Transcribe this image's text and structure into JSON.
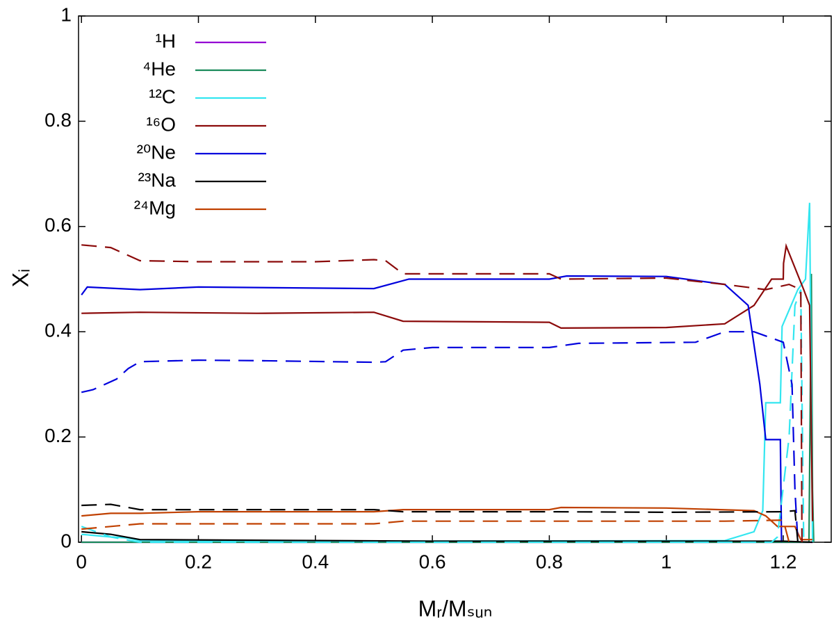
{
  "chart_data": {
    "type": "line",
    "xlabel": "Mᵣ/Mₛᵤₙ",
    "ylabel": "Xᵢ",
    "xlim": [
      -0.005,
      1.282
    ],
    "ylim": [
      0,
      1
    ],
    "xticks": [
      0,
      0.2,
      0.4,
      0.6,
      0.8,
      1,
      1.2
    ],
    "yticks": [
      0,
      0.2,
      0.4,
      0.6,
      0.8,
      1
    ],
    "legend": "top-left",
    "series": [
      {
        "name": "¹H",
        "color": "#9400d3",
        "x": [
          0,
          1.25
        ],
        "values": [
          0,
          0
        ]
      },
      {
        "name": "⁴He",
        "color": "#1a8a5a",
        "x": [
          0,
          1.244,
          1.248,
          1.25,
          1.252
        ],
        "values": [
          0,
          0,
          0.51,
          0.1,
          0
        ]
      },
      {
        "name": "¹²C",
        "color": "#33e6f0",
        "x": [
          0,
          0.05,
          0.08,
          0.1,
          0.5,
          1.1,
          1.15,
          1.165,
          1.17,
          1.195,
          1.198,
          1.225,
          1.238,
          1.245,
          1.25
        ],
        "values": [
          0.015,
          0.01,
          0.008,
          0.003,
          0.002,
          0.003,
          0.02,
          0.06,
          0.265,
          0.265,
          0.41,
          0.48,
          0.5,
          0.645,
          0
        ]
      },
      {
        "name": "¹⁶O",
        "color": "#8b0a0a",
        "x": [
          0,
          0.1,
          0.3,
          0.5,
          0.55,
          0.8,
          0.82,
          1.0,
          1.1,
          1.15,
          1.18,
          1.2,
          1.2005,
          1.205,
          1.235,
          1.245,
          1.25
        ],
        "values": [
          0.435,
          0.437,
          0.435,
          0.437,
          0.42,
          0.418,
          0.407,
          0.408,
          0.415,
          0.45,
          0.5,
          0.5,
          0.53,
          0.563,
          0.48,
          0.45,
          0.04
        ]
      },
      {
        "name": "²⁰Ne",
        "color": "#0000dd",
        "x": [
          0,
          0.01,
          0.1,
          0.2,
          0.5,
          0.56,
          0.8,
          0.83,
          1.0,
          1.1,
          1.14,
          1.16,
          1.17,
          1.195,
          1.197
        ],
        "values": [
          0.47,
          0.485,
          0.48,
          0.485,
          0.482,
          0.5,
          0.5,
          0.506,
          0.505,
          0.49,
          0.45,
          0.3,
          0.195,
          0.195,
          0
        ]
      },
      {
        "name": "²³Na",
        "color": "#000000",
        "x": [
          0,
          0.05,
          0.1,
          0.6,
          1.2,
          1.25
        ],
        "values": [
          0.02,
          0.015,
          0.005,
          0.002,
          0.002,
          0
        ]
      },
      {
        "name": "²⁴Mg",
        "color": "#c04000",
        "x": [
          0,
          0.05,
          0.1,
          0.2,
          0.5,
          0.55,
          0.8,
          0.82,
          1.0,
          1.15,
          1.17,
          1.19,
          1.22,
          1.23,
          1.25
        ],
        "values": [
          0.05,
          0.055,
          0.055,
          0.058,
          0.058,
          0.062,
          0.062,
          0.066,
          0.065,
          0.06,
          0.05,
          0.03,
          0.03,
          0.005,
          0.005
        ]
      },
      {
        "color": "#33e6f0",
        "dash": true,
        "x": [
          0,
          0.05,
          0.1,
          1.18,
          1.19,
          1.21,
          1.22,
          1.23,
          1.235
        ],
        "values": [
          0.03,
          0.01,
          0,
          0,
          0.01,
          0.2,
          0.45,
          0.48,
          0
        ]
      },
      {
        "color": "#8b0a0a",
        "dash": true,
        "x": [
          0,
          0.05,
          0.1,
          0.2,
          0.4,
          0.5,
          0.52,
          0.55,
          0.8,
          0.82,
          1.0,
          1.1,
          1.17,
          1.21,
          1.23,
          1.232
        ],
        "values": [
          0.565,
          0.56,
          0.535,
          0.533,
          0.533,
          0.537,
          0.535,
          0.51,
          0.51,
          0.5,
          0.502,
          0.49,
          0.48,
          0.49,
          0.48,
          0
        ]
      },
      {
        "color": "#0000dd",
        "dash": true,
        "x": [
          0,
          0.02,
          0.06,
          0.08,
          0.1,
          0.2,
          0.3,
          0.5,
          0.52,
          0.55,
          0.6,
          0.8,
          0.85,
          1.05,
          1.1,
          1.15,
          1.2,
          1.215,
          1.22,
          1.225
        ],
        "values": [
          0.285,
          0.29,
          0.31,
          0.33,
          0.343,
          0.346,
          0.345,
          0.342,
          0.343,
          0.365,
          0.37,
          0.37,
          0.378,
          0.38,
          0.4,
          0.4,
          0.38,
          0.3,
          0.1,
          0
        ]
      },
      {
        "color": "#000000",
        "dash": true,
        "x": [
          0,
          0.05,
          0.1,
          0.5,
          0.55,
          0.8,
          1.0,
          1.2,
          1.22,
          1.225
        ],
        "values": [
          0.07,
          0.072,
          0.062,
          0.062,
          0.058,
          0.058,
          0.057,
          0.058,
          0.06,
          0
        ]
      },
      {
        "color": "#c04000",
        "dash": true,
        "x": [
          0,
          0.05,
          0.1,
          0.5,
          0.55,
          0.8,
          1.1,
          1.2,
          1.21
        ],
        "values": [
          0.025,
          0.03,
          0.035,
          0.035,
          0.04,
          0.04,
          0.04,
          0.042,
          0
        ]
      }
    ]
  }
}
